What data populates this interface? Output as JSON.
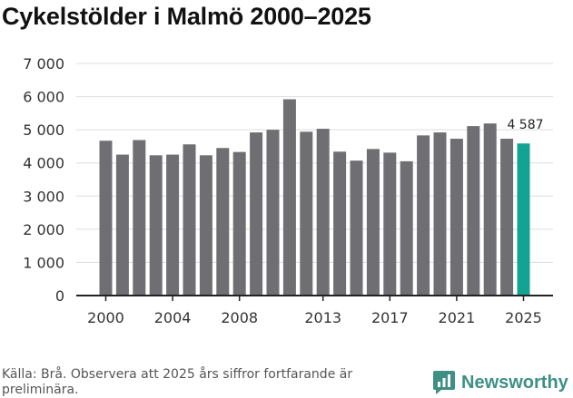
{
  "title": "Cykelstölder i Malmö 2000–2025",
  "source_note": "Källa: Brå. Observera att 2025 års siffror fortfarande är preliminära.",
  "brand_name": "Newsworthy",
  "colors": {
    "bar": "#6f6e73",
    "highlight": "#12a392",
    "brand": "#3e8f85",
    "grid": "#dddddd",
    "axis": "#222222"
  },
  "chart_data": {
    "type": "bar",
    "title": "Cykelstölder i Malmö 2000–2025",
    "xlabel": "",
    "ylabel": "",
    "ylim": [
      0,
      7000
    ],
    "y_ticks": [
      0,
      1000,
      2000,
      3000,
      4000,
      5000,
      6000,
      7000
    ],
    "y_tick_labels": [
      "0",
      "1 000",
      "2 000",
      "3 000",
      "4 000",
      "5 000",
      "6 000",
      "7 000"
    ],
    "x_tick_labels": [
      "2000",
      "2004",
      "2008",
      "2013",
      "2017",
      "2021",
      "2025"
    ],
    "grid": true,
    "categories": [
      "2000",
      "2001",
      "2002",
      "2003",
      "2004",
      "2005",
      "2006",
      "2007",
      "2008",
      "2009",
      "2010",
      "2011",
      "2012",
      "2013",
      "2014",
      "2015",
      "2016",
      "2017",
      "2018",
      "2019",
      "2020",
      "2021",
      "2022",
      "2023",
      "2024",
      "2025"
    ],
    "values": [
      4670,
      4250,
      4690,
      4230,
      4250,
      4560,
      4230,
      4450,
      4330,
      4920,
      5000,
      5920,
      4940,
      5030,
      4340,
      4070,
      4420,
      4310,
      4050,
      4830,
      4920,
      4730,
      5110,
      5190,
      4730,
      4587
    ],
    "highlight_index": 25,
    "data_label": "4 587"
  }
}
